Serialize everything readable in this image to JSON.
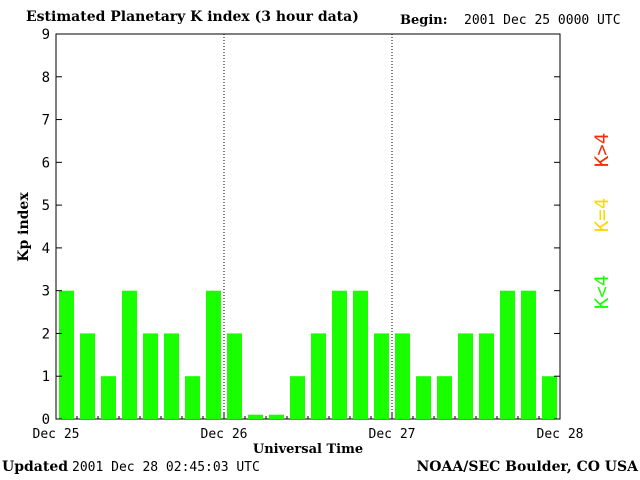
{
  "header": {
    "title": "Estimated Planetary K index (3 hour data)",
    "begin_label": "Begin:",
    "begin_value": "2001 Dec 25 0000 UTC"
  },
  "footer": {
    "updated_label": "Updated",
    "updated_value": "2001 Dec 28 02:45:03 UTC",
    "source": "NOAA/SEC Boulder, CO USA"
  },
  "legend": {
    "high": "K>4",
    "equal": "K=4",
    "low": "K<4"
  },
  "colors": {
    "bar": "#1aff00",
    "legend_high": "#ff2a00",
    "legend_equal": "#ffd700",
    "legend_low": "#1aff00",
    "axis": "#000000",
    "day_separator": "#000000"
  },
  "chart_data": {
    "type": "bar",
    "title": "Estimated Planetary K index (3 hour data)",
    "xlabel": "Universal Time",
    "ylabel": "Kp index",
    "ylim": [
      0,
      9
    ],
    "yticks": [
      "0",
      "1",
      "2",
      "3",
      "4",
      "5",
      "6",
      "7",
      "8",
      "9"
    ],
    "xticks": [
      "Dec 25",
      "Dec 26",
      "Dec 27",
      "Dec 28"
    ],
    "interval_hours": 3,
    "values": [
      3,
      2,
      1,
      3,
      2,
      2,
      1,
      3,
      2,
      0.1,
      0.1,
      1,
      2,
      3,
      3,
      2,
      2,
      1,
      1,
      2,
      2,
      3,
      3,
      1
    ],
    "grid": false,
    "day_separators": true
  }
}
